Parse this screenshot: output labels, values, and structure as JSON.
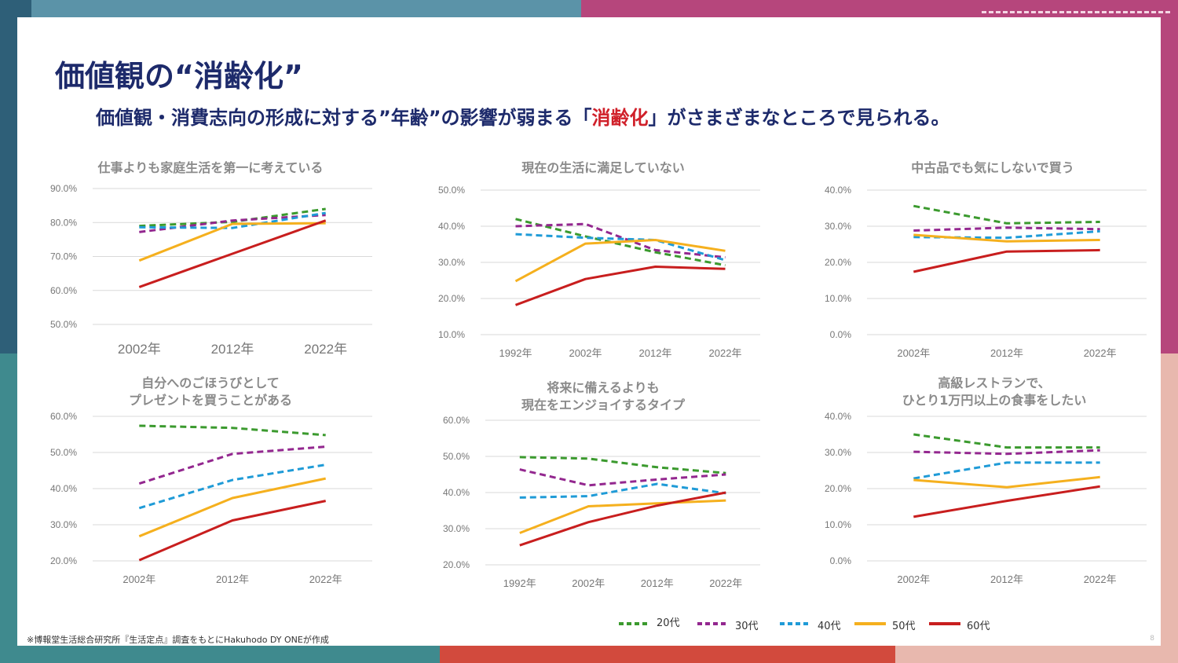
{
  "page": {
    "title": "価値観の“消齢化”",
    "subtitle_before": "価値観・消費志向の形成に対する”年齢”の影響が弱まる「",
    "subtitle_highlight": "消齢化",
    "subtitle_after": "」がさまざまなところで見られる。",
    "footnote": "※博報堂生活総合研究所『生活定点』調査をもとにHakuhodo DY ONEが作成",
    "page_number": "8"
  },
  "colors": {
    "title": "#1d2a6b",
    "highlight": "#d0202a",
    "20代": "#3b9a2e",
    "30代": "#93278f",
    "40代": "#1f9bd7",
    "50代": "#f5b01e",
    "60代": "#c81e1e"
  },
  "legend": [
    {
      "name": "20代",
      "color": "#3b9a2e",
      "dash": true
    },
    {
      "name": "30代",
      "color": "#93278f",
      "dash": true
    },
    {
      "name": "40代",
      "color": "#1f9bd7",
      "dash": true
    },
    {
      "name": "50代",
      "color": "#f5b01e",
      "dash": false
    },
    {
      "name": "60代",
      "color": "#c81e1e",
      "dash": false
    }
  ],
  "chart_data": [
    {
      "type": "line",
      "title": "仕事よりも家庭生活を第一に考えている",
      "x": [
        "2002年",
        "2012年",
        "2022年"
      ],
      "yticks": [
        "50.0%",
        "60.0%",
        "70.0%",
        "80.0%",
        "90.0%"
      ],
      "ylim": [
        50,
        90
      ],
      "series": [
        {
          "name": "20代",
          "values": [
            79.0,
            80.2,
            84.0
          ]
        },
        {
          "name": "30代",
          "values": [
            77.2,
            80.6,
            82.2
          ]
        },
        {
          "name": "40代",
          "values": [
            78.6,
            78.4,
            82.8
          ]
        },
        {
          "name": "50代",
          "values": [
            68.8,
            79.6,
            79.8
          ]
        },
        {
          "name": "60代",
          "values": [
            61.0,
            70.8,
            80.6
          ]
        }
      ]
    },
    {
      "type": "line",
      "title": "現在の生活に満足していない",
      "x": [
        "1992年",
        "2002年",
        "2012年",
        "2022年"
      ],
      "yticks": [
        "10.0%",
        "20.0%",
        "30.0%",
        "40.0%",
        "50.0%"
      ],
      "ylim": [
        10,
        50
      ],
      "series": [
        {
          "name": "20代",
          "values": [
            42.0,
            37.2,
            32.8,
            29.2
          ]
        },
        {
          "name": "30代",
          "values": [
            40.0,
            40.6,
            33.4,
            31.4
          ]
        },
        {
          "name": "40代",
          "values": [
            37.8,
            36.8,
            36.2,
            30.6
          ]
        },
        {
          "name": "50代",
          "values": [
            24.8,
            35.2,
            36.2,
            33.2
          ]
        },
        {
          "name": "60代",
          "values": [
            18.2,
            25.4,
            28.8,
            28.2
          ]
        }
      ]
    },
    {
      "type": "line",
      "title": "中古品でも気にしないで買う",
      "x": [
        "2002年",
        "2012年",
        "2022年"
      ],
      "yticks": [
        "0.0%",
        "10.0%",
        "20.0%",
        "30.0%",
        "40.0%"
      ],
      "ylim": [
        0,
        40
      ],
      "series": [
        {
          "name": "20代",
          "values": [
            35.6,
            30.8,
            31.2
          ]
        },
        {
          "name": "30代",
          "values": [
            28.8,
            29.6,
            29.2
          ]
        },
        {
          "name": "40代",
          "values": [
            27.0,
            26.8,
            28.6
          ]
        },
        {
          "name": "50代",
          "values": [
            27.6,
            25.8,
            26.2
          ]
        },
        {
          "name": "60代",
          "values": [
            17.4,
            23.0,
            23.4
          ]
        }
      ]
    },
    {
      "type": "line",
      "title": "自分へのごほうびとして\nプレゼントを買うことがある",
      "x": [
        "2002年",
        "2012年",
        "2022年"
      ],
      "yticks": [
        "20.0%",
        "30.0%",
        "40.0%",
        "50.0%",
        "60.0%"
      ],
      "ylim": [
        20,
        60
      ],
      "series": [
        {
          "name": "20代",
          "values": [
            57.4,
            56.8,
            54.8
          ]
        },
        {
          "name": "30代",
          "values": [
            41.4,
            49.6,
            51.6
          ]
        },
        {
          "name": "40代",
          "values": [
            34.6,
            42.4,
            46.6
          ]
        },
        {
          "name": "50代",
          "values": [
            26.8,
            37.4,
            42.8
          ]
        },
        {
          "name": "60代",
          "values": [
            20.2,
            31.2,
            36.6
          ]
        }
      ]
    },
    {
      "type": "line",
      "title": "将来に備えるよりも\n現在をエンジョイするタイプ",
      "x": [
        "1992年",
        "2002年",
        "2012年",
        "2022年"
      ],
      "yticks": [
        "20.0%",
        "30.0%",
        "40.0%",
        "50.0%",
        "60.0%"
      ],
      "ylim": [
        20,
        60
      ],
      "series": [
        {
          "name": "20代",
          "values": [
            49.8,
            49.4,
            47.0,
            45.4
          ]
        },
        {
          "name": "30代",
          "values": [
            46.4,
            42.0,
            43.6,
            45.0
          ]
        },
        {
          "name": "40代",
          "values": [
            38.6,
            39.0,
            42.4,
            39.8
          ]
        },
        {
          "name": "50代",
          "values": [
            28.8,
            36.2,
            37.0,
            37.8
          ]
        },
        {
          "name": "60代",
          "values": [
            25.4,
            31.8,
            36.4,
            40.0
          ]
        }
      ]
    },
    {
      "type": "line",
      "title": "高級レストランで、\nひとり1万円以上の食事をしたい",
      "x": [
        "2002年",
        "2012年",
        "2022年"
      ],
      "yticks": [
        "0.0%",
        "10.0%",
        "20.0%",
        "30.0%",
        "40.0%"
      ],
      "ylim": [
        0,
        40
      ],
      "series": [
        {
          "name": "20代",
          "values": [
            35.0,
            31.4,
            31.4
          ]
        },
        {
          "name": "30代",
          "values": [
            30.2,
            29.6,
            30.6
          ]
        },
        {
          "name": "40代",
          "values": [
            22.8,
            27.2,
            27.2
          ]
        },
        {
          "name": "50代",
          "values": [
            22.4,
            20.4,
            23.2
          ]
        },
        {
          "name": "60代",
          "values": [
            12.2,
            16.6,
            20.6
          ]
        }
      ]
    }
  ]
}
